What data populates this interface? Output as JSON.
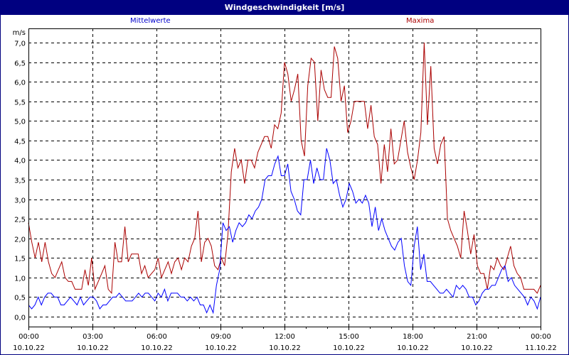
{
  "window": {
    "title": "Windgeschwindigkeit [m/s]",
    "colors": {
      "titlebar": "#000080",
      "title_text": "#ffffff",
      "mean_series": "#0000ff",
      "max_series": "#aa0000",
      "grid": "#000000",
      "background": "#ffffff"
    }
  },
  "legend": {
    "mean_label": "Mittelwerte",
    "max_label": "Maxima"
  },
  "axis": {
    "y_unit": "m/s",
    "y_ticks": [
      "7,0",
      "6,5",
      "6,0",
      "5,5",
      "5,0",
      "4,5",
      "4,0",
      "3,5",
      "3,0",
      "2,5",
      "2,0",
      "1,5",
      "1,0",
      "0,5",
      "0,0"
    ],
    "x_ticks": [
      {
        "time": "00:00",
        "date": "10.10.22"
      },
      {
        "time": "03:00",
        "date": "10.10.22"
      },
      {
        "time": "06:00",
        "date": "10.10.22"
      },
      {
        "time": "09:00",
        "date": "10.10.22"
      },
      {
        "time": "12:00",
        "date": "10.10.22"
      },
      {
        "time": "15:00",
        "date": "10.10.22"
      },
      {
        "time": "18:00",
        "date": "10.10.22"
      },
      {
        "time": "21:00",
        "date": "10.10.22"
      },
      {
        "time": "00:00",
        "date": "11.10.22"
      }
    ]
  },
  "chart_data": {
    "type": "line",
    "title": "Windgeschwindigkeit [m/s]",
    "xlabel": "",
    "ylabel": "m/s",
    "ylim": [
      -0.25,
      7.25
    ],
    "xlim": [
      "10.10.22 00:00",
      "11.10.22 00:00"
    ],
    "x_step_minutes": 10,
    "grid": true,
    "legend_position": "top",
    "series": [
      {
        "name": "Mittelwerte",
        "color": "#0000ff",
        "values": [
          0.3,
          0.2,
          0.3,
          0.5,
          0.3,
          0.5,
          0.6,
          0.6,
          0.5,
          0.5,
          0.3,
          0.3,
          0.4,
          0.5,
          0.4,
          0.3,
          0.5,
          0.3,
          0.4,
          0.5,
          0.5,
          0.4,
          0.2,
          0.3,
          0.3,
          0.4,
          0.5,
          0.5,
          0.6,
          0.5,
          0.4,
          0.4,
          0.4,
          0.5,
          0.6,
          0.5,
          0.6,
          0.6,
          0.5,
          0.4,
          0.6,
          0.5,
          0.7,
          0.4,
          0.6,
          0.6,
          0.6,
          0.5,
          0.5,
          0.4,
          0.5,
          0.4,
          0.5,
          0.3,
          0.3,
          0.1,
          0.3,
          0.1,
          0.8,
          1.2,
          2.4,
          2.2,
          2.3,
          1.9,
          2.2,
          2.4,
          2.3,
          2.4,
          2.6,
          2.5,
          2.7,
          2.8,
          3.0,
          3.5,
          3.6,
          3.6,
          3.9,
          4.1,
          3.6,
          3.6,
          3.9,
          3.2,
          3.0,
          2.7,
          2.6,
          3.5,
          3.5,
          4.0,
          3.4,
          3.8,
          3.5,
          3.5,
          4.3,
          4.0,
          3.4,
          3.5,
          3.1,
          2.8,
          3.0,
          3.4,
          3.2,
          2.9,
          3.0,
          2.9,
          3.1,
          2.9,
          2.3,
          2.8,
          2.2,
          2.5,
          2.2,
          2.0,
          1.8,
          1.7,
          1.9,
          2.0,
          1.3,
          0.9,
          0.8,
          1.8,
          2.3,
          1.2,
          1.6,
          0.9,
          0.9,
          0.8,
          0.7,
          0.6,
          0.6,
          0.7,
          0.6,
          0.5,
          0.8,
          0.7,
          0.8,
          0.7,
          0.5,
          0.5,
          0.3,
          0.4,
          0.6,
          0.7,
          0.7,
          0.8,
          0.8,
          1.0,
          1.2,
          1.3,
          0.9,
          1.0,
          0.8,
          0.7,
          0.6,
          0.5,
          0.3,
          0.5,
          0.4,
          0.2,
          0.5
        ]
      },
      {
        "name": "Maxima",
        "color": "#aa0000",
        "values": [
          2.4,
          1.9,
          1.5,
          1.9,
          1.4,
          1.9,
          1.4,
          1.1,
          1.0,
          1.2,
          1.4,
          1.0,
          0.9,
          0.9,
          0.7,
          0.7,
          0.7,
          1.2,
          0.8,
          1.5,
          0.7,
          0.9,
          1.1,
          1.3,
          0.7,
          0.6,
          1.9,
          1.4,
          1.4,
          2.3,
          1.4,
          1.6,
          1.6,
          1.6,
          1.1,
          1.3,
          1.0,
          1.1,
          1.2,
          1.5,
          1.0,
          1.2,
          1.4,
          1.1,
          1.4,
          1.5,
          1.2,
          1.5,
          1.4,
          1.8,
          2.0,
          2.7,
          1.4,
          1.9,
          2.0,
          1.8,
          1.3,
          1.2,
          1.5,
          1.3,
          2.1,
          3.7,
          4.3,
          3.8,
          4.0,
          3.4,
          4.0,
          4.0,
          3.8,
          4.2,
          4.4,
          4.6,
          4.6,
          4.3,
          4.9,
          4.8,
          5.2,
          6.5,
          6.2,
          5.5,
          5.8,
          6.2,
          4.5,
          4.1,
          5.9,
          6.6,
          6.5,
          5.0,
          6.3,
          5.8,
          5.6,
          5.6,
          6.9,
          6.6,
          5.5,
          5.9,
          4.7,
          5.0,
          5.5,
          5.5,
          5.5,
          5.5,
          4.8,
          5.4,
          4.6,
          4.4,
          3.4,
          4.4,
          3.7,
          4.8,
          3.9,
          4.0,
          4.5,
          5.0,
          4.2,
          3.8,
          3.5,
          4.0,
          4.7,
          7.0,
          4.9,
          6.4,
          4.3,
          3.9,
          4.4,
          4.6,
          2.5,
          2.2,
          2.0,
          1.8,
          1.5,
          2.7,
          2.2,
          1.6,
          2.1,
          1.3,
          1.1,
          1.1,
          0.7,
          1.3,
          1.2,
          1.5,
          1.3,
          1.2,
          1.5,
          1.8,
          1.3,
          1.1,
          1.0,
          0.7,
          0.7,
          0.7,
          0.7,
          0.6,
          0.8
        ]
      }
    ]
  }
}
